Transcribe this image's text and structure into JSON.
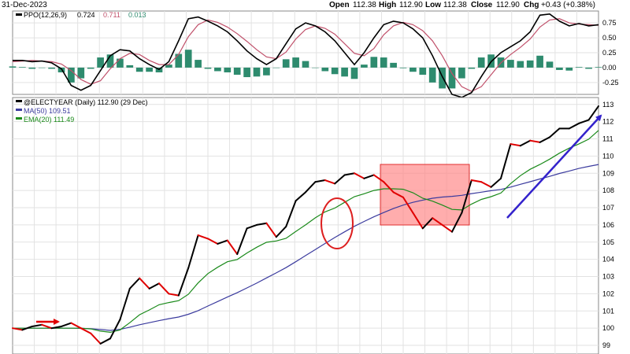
{
  "header": {
    "date": "31-Dec-2023",
    "open_label": "Open",
    "open": "112.38",
    "high_label": "High",
    "high": "112.90",
    "low_label": "Low",
    "low": "112.38",
    "close_label": "Close",
    "close": "112.90",
    "chg_label": "Chg",
    "chg": "+0.43 (+0.38%)"
  },
  "colors": {
    "price_up": "#000000",
    "price_down": "#e00000",
    "ma50": "#3b3b9e",
    "ema20": "#1a8a1a",
    "ppo": "#000000",
    "ppo_signal": "#c0506a",
    "ppo_hist": "#2e8b6e",
    "box_fill": "#ff8a8a",
    "box_stroke": "#e03030",
    "circle": "#dd2020",
    "arrow": "#3322cc",
    "grid": "#e2e2e2",
    "panel_border": "#888888"
  },
  "chart_data": [
    {
      "type": "line",
      "panel": "ppo",
      "legend": {
        "label": "PPO(12,26,9)",
        "ppo": "0.724",
        "signal": "0.711",
        "hist": "0.013"
      },
      "yticks": [
        "0.75",
        "0.50",
        "0.25",
        "0.00",
        "-0.25"
      ],
      "ylim": [
        -0.45,
        0.95
      ],
      "x": [
        0,
        6,
        12,
        18,
        24,
        30,
        36,
        42,
        48,
        54,
        60,
        66,
        72,
        78,
        84,
        90,
        96,
        102,
        108,
        114,
        120,
        126,
        132,
        138,
        144,
        150,
        156,
        162,
        168,
        174,
        180,
        186,
        192,
        198,
        204,
        210,
        216,
        222,
        228,
        234,
        240,
        246,
        252,
        258,
        264,
        270,
        276,
        282,
        288,
        294,
        300,
        306,
        312,
        318,
        324,
        330,
        336,
        342,
        348,
        354,
        360
      ],
      "series": [
        {
          "key": "ppo",
          "values": [
            0.12,
            0.12,
            0.1,
            0.11,
            0.08,
            -0.02,
            -0.3,
            -0.38,
            -0.3,
            -0.05,
            0.2,
            0.3,
            0.28,
            0.15,
            0.05,
            -0.03,
            0.1,
            0.45,
            0.82,
            0.85,
            0.78,
            0.7,
            0.6,
            0.45,
            0.28,
            0.15,
            0.05,
            0.15,
            0.4,
            0.65,
            0.75,
            0.7,
            0.6,
            0.45,
            0.25,
            0.05,
            0.25,
            0.5,
            0.72,
            0.78,
            0.75,
            0.65,
            0.5,
            0.2,
            -0.15,
            -0.45,
            -0.5,
            -0.42,
            -0.15,
            0.1,
            0.25,
            0.35,
            0.45,
            0.6,
            0.88,
            0.9,
            0.78,
            0.7,
            0.74,
            0.7,
            0.72
          ]
        },
        {
          "key": "signal",
          "values": [
            0.1,
            0.11,
            0.12,
            0.11,
            0.1,
            0.06,
            -0.05,
            -0.2,
            -0.28,
            -0.22,
            -0.02,
            0.15,
            0.24,
            0.22,
            0.12,
            0.05,
            0.05,
            0.22,
            0.52,
            0.72,
            0.8,
            0.76,
            0.68,
            0.57,
            0.44,
            0.3,
            0.18,
            0.15,
            0.26,
            0.48,
            0.64,
            0.7,
            0.66,
            0.56,
            0.4,
            0.24,
            0.2,
            0.32,
            0.55,
            0.7,
            0.76,
            0.72,
            0.62,
            0.45,
            0.2,
            -0.1,
            -0.32,
            -0.4,
            -0.32,
            -0.12,
            0.08,
            0.22,
            0.34,
            0.48,
            0.68,
            0.8,
            0.82,
            0.75,
            0.73,
            0.72,
            0.71
          ]
        },
        {
          "key": "hist",
          "values": [
            0.02,
            0.01,
            -0.02,
            0.0,
            -0.02,
            -0.08,
            -0.25,
            -0.18,
            -0.02,
            0.17,
            0.22,
            0.15,
            0.04,
            -0.07,
            -0.07,
            -0.08,
            0.05,
            0.23,
            0.3,
            0.13,
            -0.02,
            -0.06,
            -0.08,
            -0.12,
            -0.16,
            -0.15,
            -0.13,
            0.0,
            0.14,
            0.17,
            0.11,
            0.0,
            -0.06,
            -0.11,
            -0.15,
            -0.19,
            0.05,
            0.18,
            0.17,
            0.08,
            -0.01,
            -0.07,
            -0.12,
            -0.25,
            -0.35,
            -0.35,
            -0.18,
            -0.02,
            0.17,
            0.22,
            0.17,
            0.13,
            0.11,
            0.12,
            0.2,
            0.1,
            -0.04,
            -0.05,
            0.01,
            -0.02,
            0.01
          ]
        }
      ]
    },
    {
      "type": "line",
      "panel": "price",
      "legend": {
        "symbol": "@ELECTYEAR (Daily) 112.90 (29 Dec)",
        "ma": "MA(50) 109.51",
        "ema": "EMA(20) 111.49"
      },
      "yticks": [
        "113",
        "112",
        "111",
        "110",
        "109",
        "108",
        "107",
        "106",
        "105",
        "104",
        "103",
        "102",
        "101",
        "100",
        "99"
      ],
      "ylim": [
        98.5,
        113.4
      ],
      "x": [
        0,
        6,
        12,
        18,
        24,
        30,
        36,
        42,
        48,
        54,
        60,
        66,
        72,
        78,
        84,
        90,
        96,
        102,
        108,
        114,
        120,
        126,
        132,
        138,
        144,
        150,
        156,
        162,
        168,
        174,
        180,
        186,
        192,
        198,
        204,
        210,
        216,
        222,
        228,
        234,
        240,
        246,
        252,
        258,
        264,
        270,
        276,
        282,
        288,
        294,
        300,
        306,
        312,
        318,
        324,
        330,
        336,
        342,
        348,
        354,
        360
      ],
      "series": [
        {
          "key": "price",
          "values": [
            100.0,
            99.9,
            100.1,
            100.2,
            100.0,
            100.1,
            100.3,
            100.0,
            99.7,
            99.1,
            99.4,
            100.5,
            102.3,
            102.9,
            102.3,
            102.6,
            102.0,
            101.9,
            103.5,
            105.4,
            105.2,
            104.9,
            105.1,
            104.3,
            105.8,
            106.0,
            106.1,
            105.3,
            105.9,
            107.4,
            107.9,
            108.5,
            108.6,
            108.4,
            108.9,
            109.0,
            108.7,
            108.9,
            108.5,
            107.9,
            107.6,
            106.7,
            105.8,
            106.4,
            106.0,
            105.6,
            106.7,
            108.6,
            108.5,
            108.2,
            108.7,
            110.7,
            110.6,
            110.9,
            110.8,
            111.1,
            111.6,
            111.6,
            111.9,
            112.1,
            112.9
          ]
        },
        {
          "key": "ma50",
          "values": [
            100.0,
            100.0,
            100.0,
            100.0,
            100.0,
            100.0,
            100.0,
            99.99,
            99.97,
            99.92,
            99.87,
            99.93,
            100.06,
            100.2,
            100.32,
            100.44,
            100.55,
            100.65,
            100.81,
            101.02,
            101.29,
            101.55,
            101.81,
            102.06,
            102.34,
            102.62,
            102.92,
            103.21,
            103.52,
            103.86,
            104.22,
            104.57,
            104.92,
            105.27,
            105.6,
            105.92,
            106.2,
            106.47,
            106.72,
            106.95,
            107.15,
            107.31,
            107.44,
            107.55,
            107.62,
            107.66,
            107.72,
            107.82,
            107.9,
            107.99,
            108.06,
            108.2,
            108.36,
            108.51,
            108.67,
            108.82,
            108.99,
            109.13,
            109.28,
            109.4,
            109.51
          ]
        },
        {
          "key": "ema20",
          "values": [
            100.0,
            100.0,
            100.0,
            100.0,
            100.0,
            100.0,
            100.0,
            100.0,
            99.96,
            99.83,
            99.76,
            99.9,
            100.32,
            100.78,
            101.06,
            101.36,
            101.49,
            101.6,
            101.97,
            102.63,
            103.17,
            103.54,
            103.86,
            103.99,
            104.37,
            104.7,
            104.99,
            105.07,
            105.22,
            105.62,
            106.0,
            106.41,
            106.76,
            106.98,
            107.31,
            107.64,
            107.81,
            108.0,
            108.1,
            108.1,
            108.07,
            107.87,
            107.55,
            107.38,
            107.15,
            106.9,
            106.87,
            107.21,
            107.48,
            107.64,
            107.85,
            108.4,
            108.86,
            109.23,
            109.51,
            109.82,
            110.17,
            110.46,
            110.71,
            110.98,
            111.49
          ]
        }
      ]
    }
  ]
}
